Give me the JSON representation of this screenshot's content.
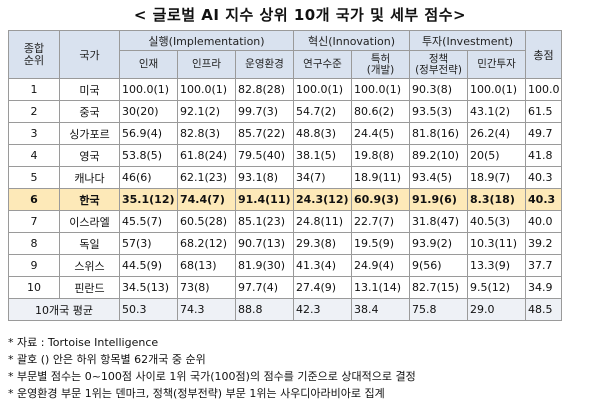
{
  "title": "< 글로벌 AI 지수 상위 10개 국가 및 세부 점수>",
  "header": {
    "rank": "종합\n순위",
    "country": "국가",
    "group_impl": "실행(Implementation)",
    "group_innov": "혁신(Innovation)",
    "group_invest": "투자(Investment)",
    "total": "총점",
    "sub": [
      "인재",
      "인프라",
      "운영환경",
      "연구수준",
      "특허\n(개발)",
      "정책\n(정부전략)",
      "민간투자"
    ]
  },
  "rows": [
    {
      "rank": "1",
      "country": "미국",
      "talent": "100.0(1)",
      "infra": "100.0(1)",
      "env": "82.8(28)",
      "research": "100.0(1)",
      "patent": "100.0(1)",
      "policy": "90.3(8)",
      "private": "100.0(1)",
      "total": "100.0"
    },
    {
      "rank": "2",
      "country": "중국",
      "talent": "30(20)",
      "infra": "92.1(2)",
      "env": "99.7(3)",
      "research": "54.7(2)",
      "patent": "80.6(2)",
      "policy": "93.5(3)",
      "private": "43.1(2)",
      "total": "61.5"
    },
    {
      "rank": "3",
      "country": "싱가포르",
      "talent": "56.9(4)",
      "infra": "82.8(3)",
      "env": "85.7(22)",
      "research": "48.8(3)",
      "patent": "24.4(5)",
      "policy": "81.8(16)",
      "private": "26.2(4)",
      "total": "49.7"
    },
    {
      "rank": "4",
      "country": "영국",
      "talent": "53.8(5)",
      "infra": "61.8(24)",
      "env": "79.5(40)",
      "research": "38.1(5)",
      "patent": "19.8(8)",
      "policy": "89.2(10)",
      "private": "20(5)",
      "total": "41.8"
    },
    {
      "rank": "5",
      "country": "캐나다",
      "talent": "46(6)",
      "infra": "62.1(23)",
      "env": "93.1(8)",
      "research": "34(7)",
      "patent": "18.9(11)",
      "policy": "93.4(5)",
      "private": "18.9(7)",
      "total": "40.3"
    },
    {
      "rank": "6",
      "country": "한국",
      "talent": "35.1(12)",
      "infra": "74.4(7)",
      "env": "91.4(11)",
      "research": "24.3(12)",
      "patent": "60.9(3)",
      "policy": "91.9(6)",
      "private": "8.3(18)",
      "total": "40.3",
      "highlight": true
    },
    {
      "rank": "7",
      "country": "이스라엘",
      "talent": "45.5(7)",
      "infra": "60.5(28)",
      "env": "85.1(23)",
      "research": "24.8(11)",
      "patent": "22.7(7)",
      "policy": "31.8(47)",
      "private": "40.5(3)",
      "total": "40.0"
    },
    {
      "rank": "8",
      "country": "독일",
      "talent": "57(3)",
      "infra": "68.2(12)",
      "env": "90.7(13)",
      "research": "29.3(8)",
      "patent": "19.5(9)",
      "policy": "93.9(2)",
      "private": "10.3(11)",
      "total": "39.2"
    },
    {
      "rank": "9",
      "country": "스위스",
      "talent": "44.5(9)",
      "infra": "68(13)",
      "env": "81.9(30)",
      "research": "41.3(4)",
      "patent": "24.9(4)",
      "policy": "9(56)",
      "private": "13.3(9)",
      "total": "37.7"
    },
    {
      "rank": "10",
      "country": "핀란드",
      "talent": "34.5(13)",
      "infra": "73(8)",
      "env": "97.7(4)",
      "research": "27.4(9)",
      "patent": "13.1(14)",
      "policy": "82.7(15)",
      "private": "9.5(12)",
      "total": "34.9"
    }
  ],
  "average": {
    "label": "10개국 평균",
    "talent": "50.3",
    "infra": "74.3",
    "env": "88.8",
    "research": "42.3",
    "patent": "38.4",
    "policy": "75.8",
    "private": "29.0",
    "total": "48.5"
  },
  "notes": [
    "* 자료 : Tortoise Intelligence",
    "* 괄호 () 안은 하위 항목별 62개국 중 순위",
    "* 부문별 점수는 0~100점 사이로 1위 국가(100점)의 점수를 기준으로 상대적으로 결정",
    "* 운영환경 부문 1위는 덴마크, 정책(정부전략) 부문 1위는 사우디아라비아로 집계"
  ],
  "colors": {
    "header_bg": "#d9e2ef",
    "highlight_bg": "#fde9b8",
    "border": "#9a9a9a"
  }
}
